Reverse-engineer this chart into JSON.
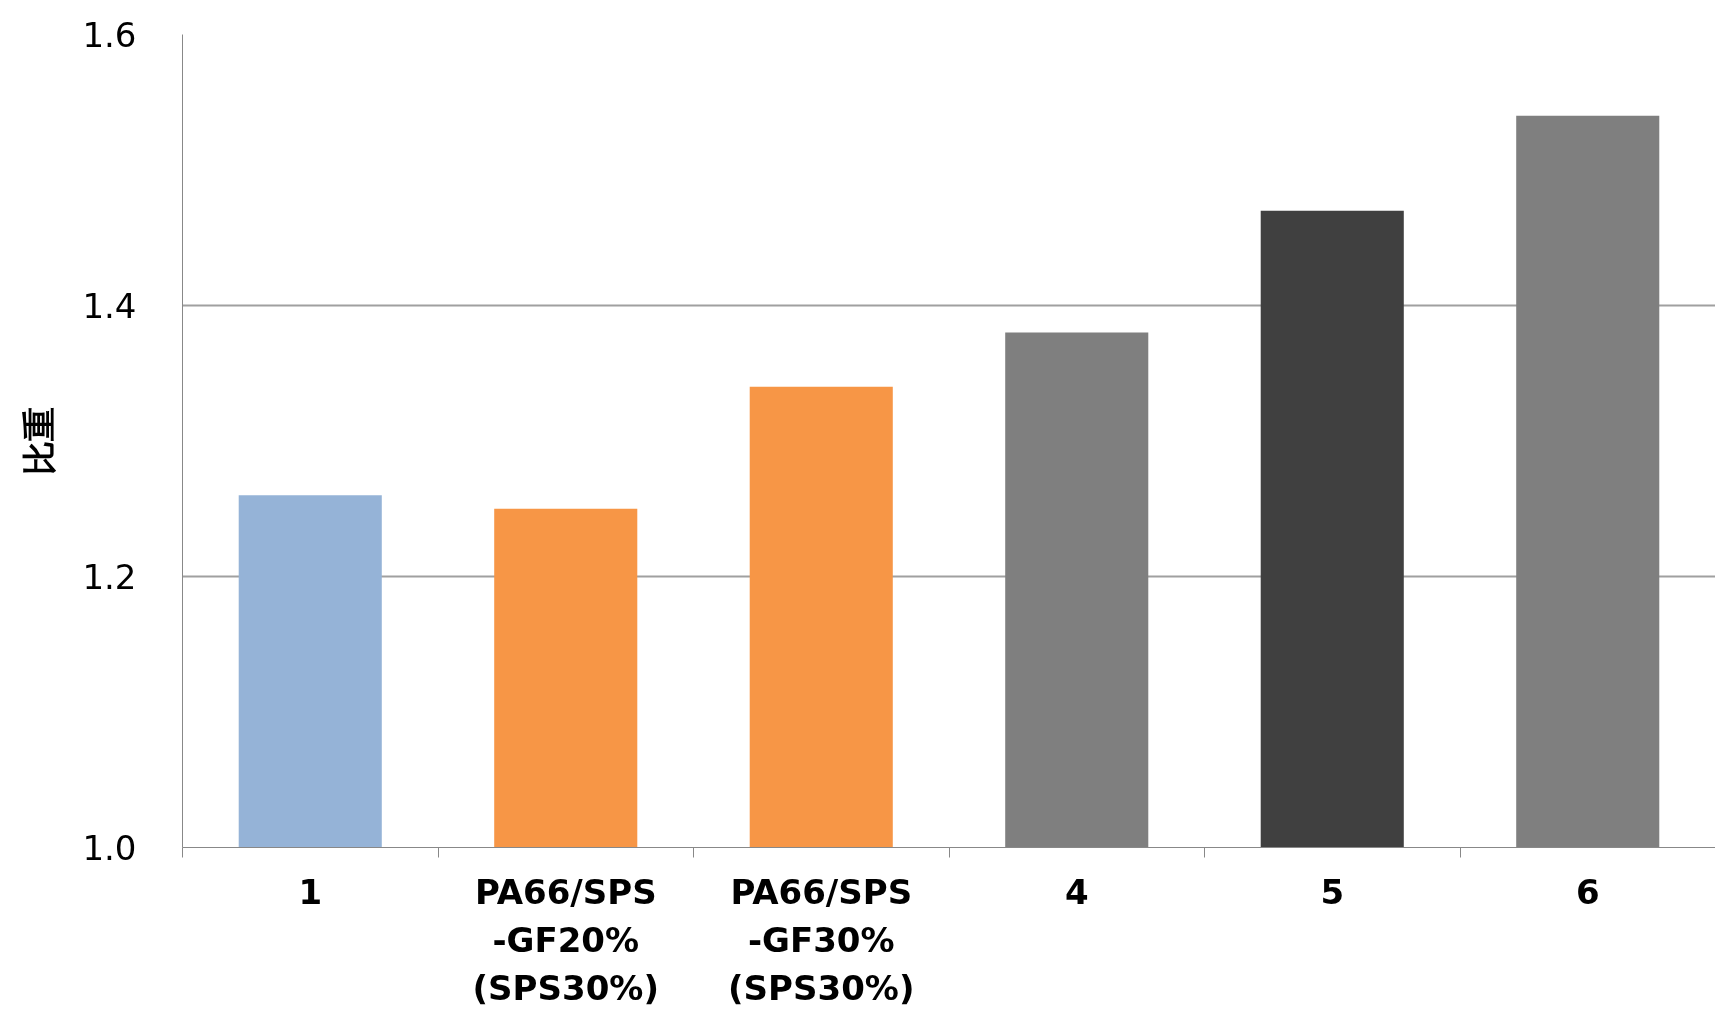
{
  "chart_data": {
    "type": "bar",
    "ylabel": "比重",
    "categories": [
      "1",
      "PA66/SPS\n-GF20%\n(SPS30%)",
      "PA66/SPS\n-GF30%\n(SPS30%)",
      "4",
      "5",
      "6"
    ],
    "values": [
      1.26,
      1.25,
      1.34,
      1.38,
      1.47,
      1.54
    ],
    "colors": [
      "#95b3d7",
      "#f79646",
      "#f79646",
      "#7f7f7f",
      "#404040",
      "#7f7f7f"
    ],
    "ylim": [
      1.0,
      1.6
    ],
    "yticks": [
      {
        "value": 1.0,
        "label": "1.0"
      },
      {
        "value": 1.2,
        "label": "1.2"
      },
      {
        "value": 1.4,
        "label": "1.4"
      },
      {
        "value": 1.6,
        "label": "1.6"
      }
    ],
    "grid": "y"
  }
}
